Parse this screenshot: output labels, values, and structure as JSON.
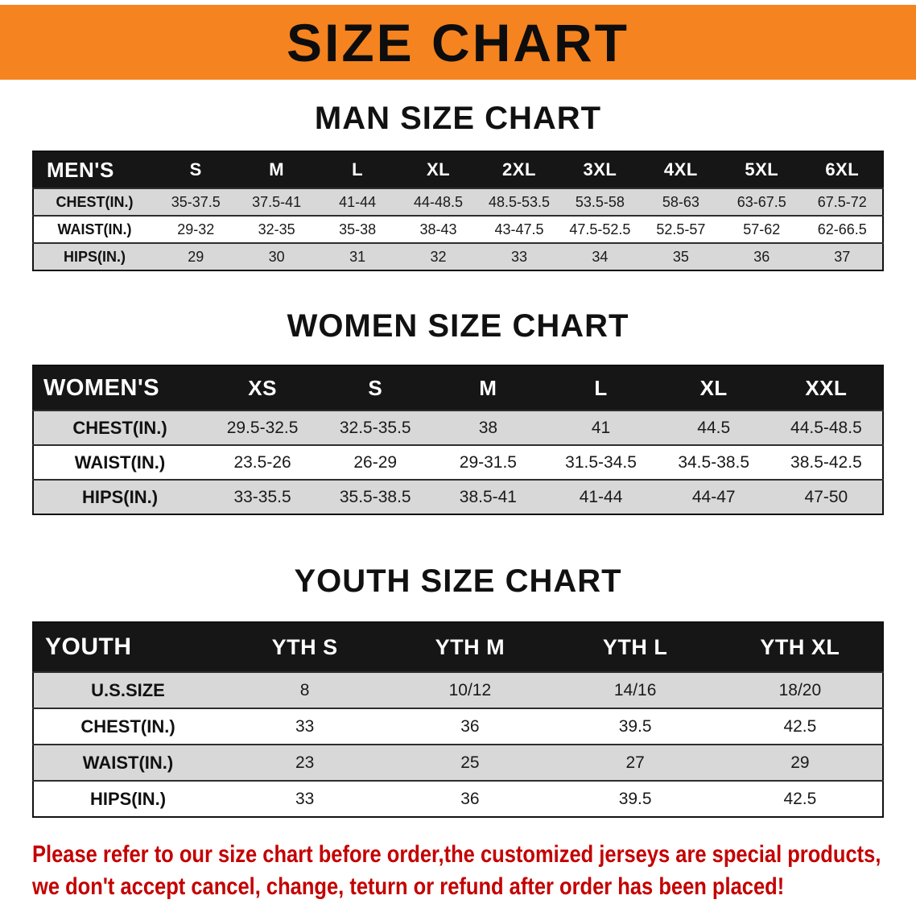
{
  "banner": {
    "title": "SIZE CHART"
  },
  "man_chart": {
    "heading": "MAN SIZE CHART",
    "table": {
      "header": [
        "MEN'S",
        "S",
        "M",
        "L",
        "XL",
        "2XL",
        "3XL",
        "4XL",
        "5XL",
        "6XL"
      ],
      "rows": [
        {
          "label": "CHEST(IN.)",
          "values": [
            "35-37.5",
            "37.5-41",
            "41-44",
            "44-48.5",
            "48.5-53.5",
            "53.5-58",
            "58-63",
            "63-67.5",
            "67.5-72"
          ]
        },
        {
          "label": "WAIST(IN.)",
          "values": [
            "29-32",
            "32-35",
            "35-38",
            "38-43",
            "43-47.5",
            "47.5-52.5",
            "52.5-57",
            "57-62",
            "62-66.5"
          ]
        },
        {
          "label": "HIPS(IN.)",
          "values": [
            "29",
            "30",
            "31",
            "32",
            "33",
            "34",
            "35",
            "36",
            "37"
          ]
        }
      ]
    }
  },
  "women_chart": {
    "heading": "WOMEN SIZE CHART",
    "table": {
      "header": [
        "WOMEN'S",
        "XS",
        "S",
        "M",
        "L",
        "XL",
        "XXL"
      ],
      "rows": [
        {
          "label": "CHEST(IN.)",
          "values": [
            "29.5-32.5",
            "32.5-35.5",
            "38",
            "41",
            "44.5",
            "44.5-48.5"
          ]
        },
        {
          "label": "WAIST(IN.)",
          "values": [
            "23.5-26",
            "26-29",
            "29-31.5",
            "31.5-34.5",
            "34.5-38.5",
            "38.5-42.5"
          ]
        },
        {
          "label": "HIPS(IN.)",
          "values": [
            "33-35.5",
            "35.5-38.5",
            "38.5-41",
            "41-44",
            "44-47",
            "47-50"
          ]
        }
      ]
    }
  },
  "youth_chart": {
    "heading": "YOUTH SIZE CHART",
    "table": {
      "header": [
        "YOUTH",
        "YTH S",
        "YTH M",
        "YTH L",
        "YTH XL"
      ],
      "rows": [
        {
          "label": "U.S.SIZE",
          "values": [
            "8",
            "10/12",
            "14/16",
            "18/20"
          ]
        },
        {
          "label": "CHEST(IN.)",
          "values": [
            "33",
            "36",
            "39.5",
            "42.5"
          ]
        },
        {
          "label": "WAIST(IN.)",
          "values": [
            "23",
            "25",
            "27",
            "29"
          ]
        },
        {
          "label": "HIPS(IN.)",
          "values": [
            "33",
            "36",
            "39.5",
            "42.5"
          ]
        }
      ]
    }
  },
  "notice": {
    "line1": "Please refer to our size chart before order,the customized jerseys are special products,",
    "line2": "we don't accept cancel, change, teturn or refund after order has been placed!"
  },
  "colors": {
    "banner_bg": "#F5831F",
    "table_header_bg": "#161616",
    "stripe_row_bg": "#D8D8D8",
    "notice_text": "#C40000"
  }
}
